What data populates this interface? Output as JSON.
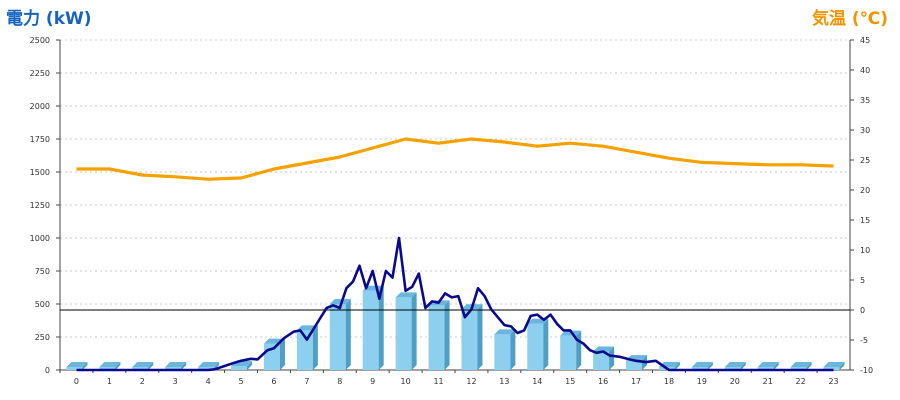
{
  "colors": {
    "power_axis_title": "#1565c0",
    "temp_axis_title": "#f29400",
    "bar_front": "#8ccfef",
    "bar_side": "#4f9ec4",
    "bar_top": "#6ab6dc",
    "power_line": "#0a0a8c",
    "temp_line": "#f5a100",
    "grid": "#bbbbbb"
  },
  "chart_data": {
    "type": "bar+line",
    "ylabel_left": "電力 (kW)",
    "ylabel_right": "気温 (℃)",
    "ylim_left": [
      0,
      2500
    ],
    "ylim_right": [
      -10,
      45
    ],
    "yticks_left": [
      0,
      250,
      500,
      750,
      1000,
      1250,
      1500,
      1750,
      2000,
      2250,
      2500
    ],
    "yticks_right": [
      -10,
      -5,
      0,
      5,
      10,
      15,
      20,
      25,
      30,
      35,
      40,
      45
    ],
    "categories": [
      "0",
      "1",
      "2",
      "3",
      "4",
      "5",
      "6",
      "7",
      "8",
      "9",
      "10",
      "11",
      "12",
      "13",
      "14",
      "15",
      "16",
      "17",
      "18",
      "19",
      "20",
      "21",
      "22",
      "23"
    ],
    "grid": "horizontal dashed",
    "reference_line_right_axis": 0,
    "series": [
      {
        "kind": "bar",
        "axis": "left",
        "values": [
          0,
          0,
          0,
          0,
          0,
          30,
          200,
          300,
          500,
          600,
          550,
          490,
          460,
          270,
          350,
          260,
          140,
          75,
          0,
          0,
          0,
          0,
          0,
          0
        ]
      },
      {
        "kind": "line",
        "axis": "left",
        "x": [
          0,
          0.5,
          1,
          1.5,
          2,
          2.5,
          3,
          3.5,
          4,
          4.2,
          4.5,
          4.8,
          5,
          5.3,
          5.5,
          5.8,
          6,
          6.3,
          6.6,
          6.8,
          7,
          7.2,
          7.4,
          7.6,
          7.8,
          8,
          8.2,
          8.4,
          8.6,
          8.8,
          9,
          9.2,
          9.4,
          9.6,
          9.8,
          10,
          10.2,
          10.4,
          10.6,
          10.8,
          11,
          11.2,
          11.4,
          11.6,
          11.8,
          12,
          12.2,
          12.4,
          12.6,
          12.8,
          13,
          13.2,
          13.4,
          13.6,
          13.8,
          14,
          14.2,
          14.4,
          14.6,
          14.8,
          15,
          15.2,
          15.4,
          15.6,
          15.8,
          16,
          16.2,
          16.5,
          16.8,
          17,
          17.3,
          17.6,
          18,
          18.5,
          19,
          20,
          21,
          22,
          23
        ],
        "values": [
          0,
          0,
          0,
          0,
          0,
          0,
          0,
          0,
          0,
          5,
          30,
          55,
          70,
          85,
          80,
          150,
          165,
          240,
          290,
          300,
          230,
          310,
          390,
          470,
          490,
          470,
          620,
          670,
          790,
          620,
          750,
          540,
          750,
          700,
          1000,
          600,
          630,
          730,
          470,
          520,
          510,
          580,
          550,
          560,
          400,
          460,
          620,
          560,
          460,
          400,
          340,
          330,
          280,
          300,
          410,
          420,
          380,
          420,
          350,
          300,
          300,
          230,
          200,
          150,
          130,
          140,
          110,
          100,
          80,
          70,
          60,
          70,
          0,
          0,
          0,
          0,
          0,
          0,
          0
        ]
      },
      {
        "kind": "line",
        "axis": "right",
        "values": [
          23.5,
          23.5,
          22.5,
          22.2,
          21.8,
          22.0,
          23.5,
          24.5,
          25.5,
          27.0,
          28.5,
          27.8,
          28.5,
          28.0,
          27.3,
          27.8,
          27.3,
          26.3,
          25.3,
          24.6,
          24.4,
          24.2,
          24.2,
          24.0
        ]
      }
    ]
  }
}
